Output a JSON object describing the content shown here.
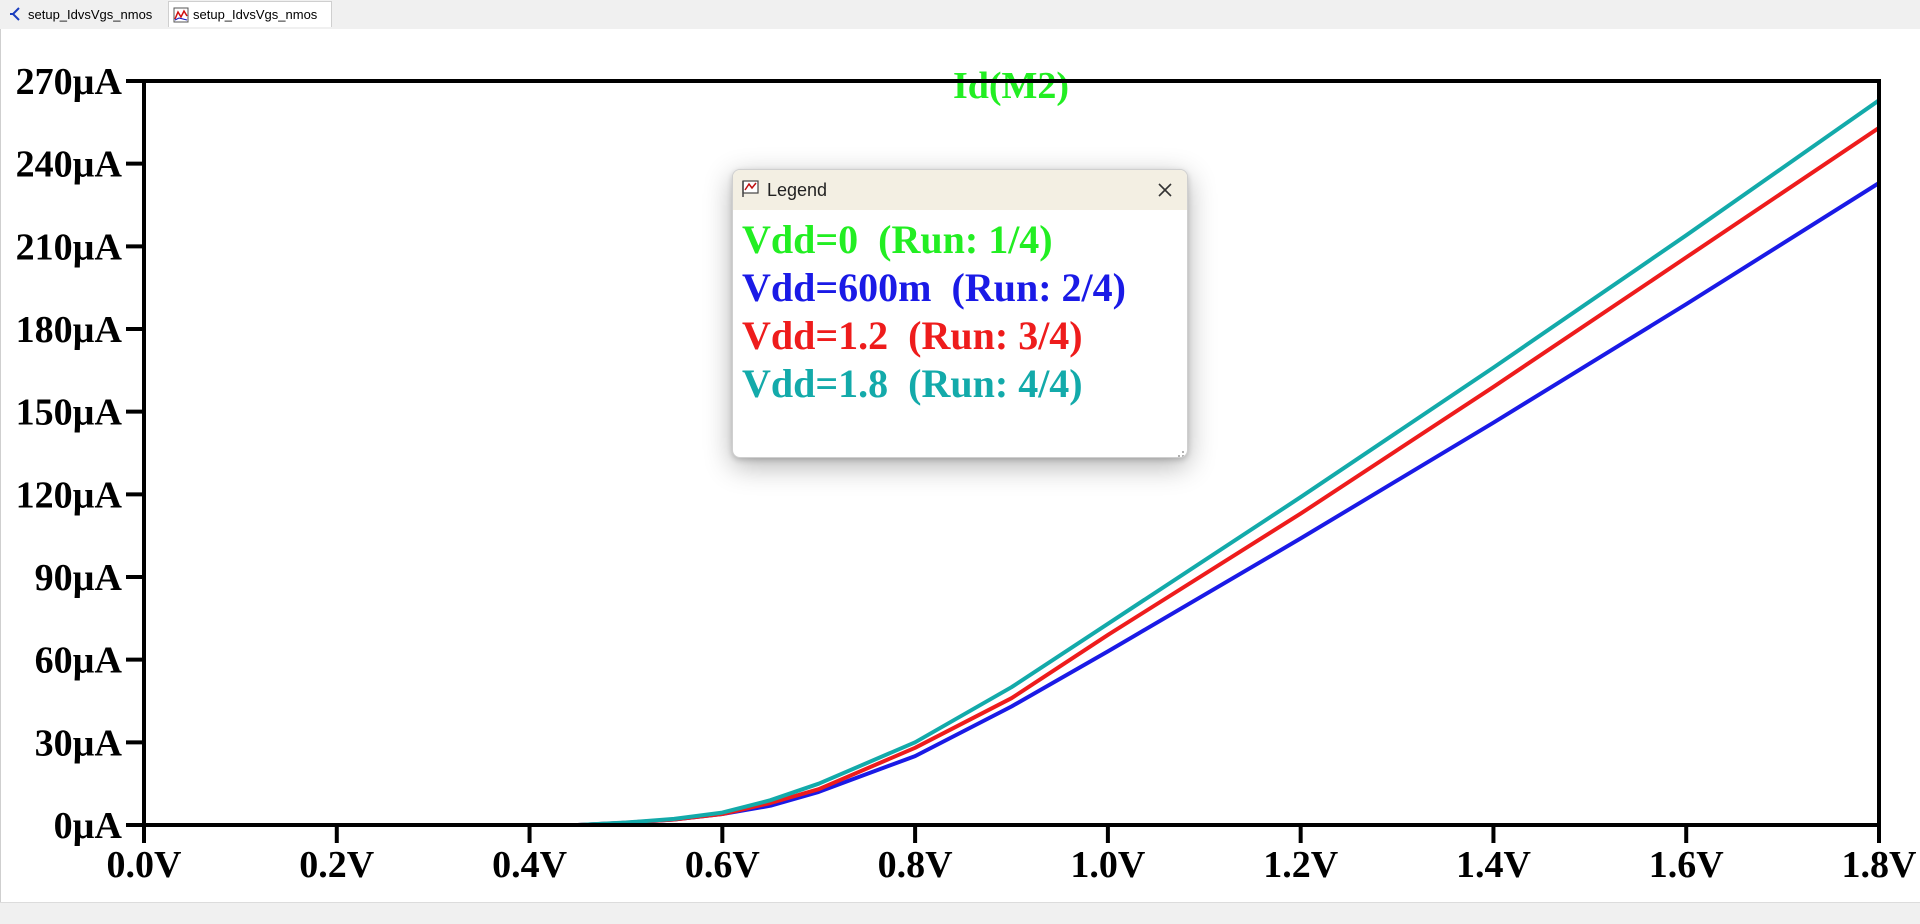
{
  "tabs": [
    {
      "label": "setup_IdvsVgs_nmos",
      "icon": "schematic-icon"
    },
    {
      "label": "setup_IdvsVgs_nmos",
      "icon": "waveform-icon"
    }
  ],
  "legend": {
    "title": "Legend",
    "entries": [
      {
        "label": "Vdd=0  (Run: 1/4)",
        "color": "#22ee22"
      },
      {
        "label": "Vdd=600m  (Run: 2/4)",
        "color": "#1a1ae6"
      },
      {
        "label": "Vdd=1.2  (Run: 3/4)",
        "color": "#ee1c1c"
      },
      {
        "label": "Vdd=1.8  (Run: 4/4)",
        "color": "#13aaaa"
      }
    ]
  },
  "chart_data": {
    "type": "line",
    "title": "Id(M2)",
    "title_color": "#22ee22",
    "xlim": [
      0,
      1.8
    ],
    "ylim": [
      0,
      270
    ],
    "x_ticks": [
      0,
      0.2,
      0.4,
      0.6,
      0.8,
      1.0,
      1.2,
      1.4,
      1.6,
      1.8
    ],
    "x_tick_labels": [
      "0.0V",
      "0.2V",
      "0.4V",
      "0.6V",
      "0.8V",
      "1.0V",
      "1.2V",
      "1.4V",
      "1.6V",
      "1.8V"
    ],
    "y_ticks": [
      0,
      30,
      60,
      90,
      120,
      150,
      180,
      210,
      240,
      270
    ],
    "y_tick_labels": [
      "0µA",
      "30µA",
      "60µA",
      "90µA",
      "120µA",
      "150µA",
      "180µA",
      "210µA",
      "240µA",
      "270µA"
    ],
    "grid": false,
    "series": [
      {
        "name": "Vdd=0  (Run: 1/4)",
        "color": "#22ee22",
        "x": [
          0,
          0.9,
          1.8
        ],
        "y": [
          0,
          0,
          0
        ]
      },
      {
        "name": "Vdd=600m  (Run: 2/4)",
        "color": "#1a1ae6",
        "x": [
          0,
          0.45,
          0.5,
          0.55,
          0.6,
          0.65,
          0.7,
          0.8,
          0.9,
          1.0,
          1.2,
          1.4,
          1.6,
          1.8
        ],
        "y": [
          0,
          0,
          0.8,
          2,
          4,
          7,
          12,
          25,
          43,
          63,
          104,
          146,
          189,
          233
        ]
      },
      {
        "name": "Vdd=1.2  (Run: 3/4)",
        "color": "#ee1c1c",
        "x": [
          0,
          0.45,
          0.5,
          0.55,
          0.6,
          0.65,
          0.7,
          0.8,
          0.9,
          1.0,
          1.2,
          1.4,
          1.6,
          1.8
        ],
        "y": [
          0,
          0,
          0.8,
          2,
          4,
          8,
          13,
          28,
          46,
          69,
          113,
          159,
          206,
          253
        ]
      },
      {
        "name": "Vdd=1.8  (Run: 4/4)",
        "color": "#13aaaa",
        "x": [
          0,
          0.45,
          0.5,
          0.55,
          0.6,
          0.65,
          0.7,
          0.8,
          0.9,
          1.0,
          1.2,
          1.4,
          1.6,
          1.8
        ],
        "y": [
          0,
          0,
          0.9,
          2.2,
          4.5,
          9,
          15,
          30,
          50,
          73,
          119,
          166,
          214,
          263
        ]
      }
    ]
  }
}
